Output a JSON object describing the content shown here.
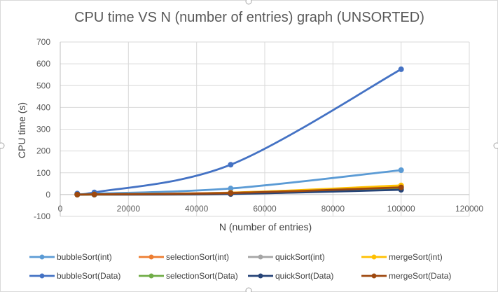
{
  "chart_data": {
    "type": "scatter",
    "title": "CPU time VS N (number of entries) graph (UNSORTED)",
    "xlabel": "N (number of entries)",
    "ylabel": "CPU time (s)",
    "xlim": [
      0,
      120000
    ],
    "ylim": [
      -100,
      700
    ],
    "x_ticks": [
      0,
      20000,
      40000,
      60000,
      80000,
      100000,
      120000
    ],
    "y_ticks": [
      -100,
      0,
      100,
      200,
      300,
      400,
      500,
      600,
      700
    ],
    "x_tick_labels": [
      "0",
      "20000",
      "40000",
      "60000",
      "80000",
      "100000",
      "120000"
    ],
    "y_tick_labels": [
      "-100",
      "0",
      "100",
      "200",
      "300",
      "400",
      "500",
      "600",
      "700"
    ],
    "grid": true,
    "smooth_lines": true,
    "legend_position": "bottom",
    "x": [
      5000,
      10000,
      50000,
      100000
    ],
    "series": [
      {
        "name": "bubbleSort(int)",
        "color": "#5b9bd5",
        "values": [
          1,
          4,
          28,
          112
        ]
      },
      {
        "name": "selectionSort(int)",
        "color": "#ed7d31",
        "values": [
          0,
          1,
          9,
          37
        ]
      },
      {
        "name": "quickSort(int)",
        "color": "#a5a5a5",
        "values": [
          0,
          0,
          2,
          27
        ]
      },
      {
        "name": "mergeSort(int)",
        "color": "#ffc000",
        "values": [
          0,
          0,
          8,
          42
        ]
      },
      {
        "name": "bubbleSort(Data)",
        "color": "#4472c4",
        "values": [
          5,
          10,
          137,
          575
        ]
      },
      {
        "name": "selectionSort(Data)",
        "color": "#70ad47",
        "values": [
          0,
          1,
          7,
          30
        ]
      },
      {
        "name": "quickSort(Data)",
        "color": "#264478",
        "values": [
          0,
          0,
          3,
          22
        ]
      },
      {
        "name": "mergeSort(Data)",
        "color": "#9e480e",
        "values": [
          0,
          1,
          7,
          33
        ]
      }
    ]
  }
}
